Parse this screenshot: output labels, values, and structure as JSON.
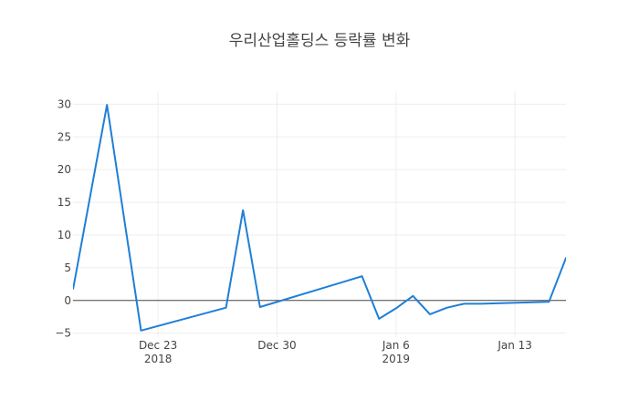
{
  "chart_data": {
    "type": "line",
    "title": "우리산업홀딩스 등락률 변화",
    "xlabel": "",
    "ylabel": "",
    "x_range": [
      "2018-12-18",
      "2019-01-16"
    ],
    "ylim": [
      -5.6,
      32
    ],
    "grid": true,
    "legend": "none",
    "x_ticks": [
      {
        "date": "2018-12-23",
        "label": "Dec 23",
        "sublabel": "2018"
      },
      {
        "date": "2018-12-30",
        "label": "Dec 30",
        "sublabel": ""
      },
      {
        "date": "2019-01-06",
        "label": "Jan 6",
        "sublabel": "2019"
      },
      {
        "date": "2019-01-13",
        "label": "Jan 13",
        "sublabel": ""
      }
    ],
    "y_ticks": [
      -5,
      0,
      5,
      10,
      15,
      20,
      25,
      30
    ],
    "y_tick_labels": [
      "−5",
      "0",
      "5",
      "10",
      "15",
      "20",
      "25",
      "30"
    ],
    "series": [
      {
        "color": "#1f7fd6",
        "x": [
          "2018-12-18",
          "2018-12-20",
          "2018-12-22",
          "2018-12-27",
          "2018-12-28",
          "2018-12-29",
          "2019-01-04",
          "2019-01-05",
          "2019-01-06",
          "2019-01-07",
          "2019-01-08",
          "2019-01-09",
          "2019-01-10",
          "2019-01-11",
          "2019-01-15",
          "2019-01-16",
          "2019-01-17"
        ],
        "y": [
          1.7,
          29.9,
          -4.6,
          -1.1,
          13.8,
          -1.0,
          3.7,
          -2.8,
          -1.2,
          0.7,
          -2.1,
          -1.1,
          -0.5,
          -0.5,
          -0.2,
          6.5,
          6.5
        ]
      }
    ]
  }
}
